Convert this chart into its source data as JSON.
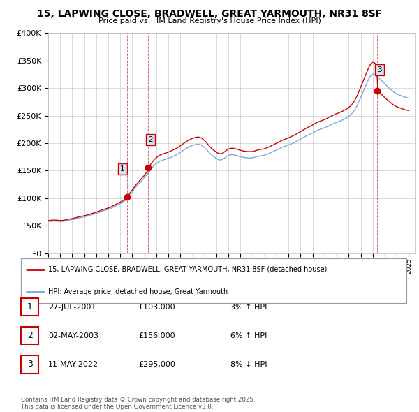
{
  "title": "15, LAPWING CLOSE, BRADWELL, GREAT YARMOUTH, NR31 8SF",
  "subtitle": "Price paid vs. HM Land Registry's House Price Index (HPI)",
  "ylim": [
    0,
    400000
  ],
  "ytick_vals": [
    0,
    50000,
    100000,
    150000,
    200000,
    250000,
    300000,
    350000,
    400000
  ],
  "sale_color": "#cc0000",
  "hpi_color": "#7aaadd",
  "vline_color": "#cc0000",
  "background_color": "#ffffff",
  "grid_color": "#cccccc",
  "sale_dates_year": [
    2001.57,
    2003.33,
    2022.36
  ],
  "sale_prices": [
    103000,
    156000,
    295000
  ],
  "sale_labels": [
    "1",
    "2",
    "3"
  ],
  "legend_label_red": "15, LAPWING CLOSE, BRADWELL, GREAT YARMOUTH, NR31 8SF (detached house)",
  "legend_label_blue": "HPI: Average price, detached house, Great Yarmouth",
  "table_rows": [
    {
      "num": "1",
      "date": "27-JUL-2001",
      "price": "£103,000",
      "hpi": "3% ↑ HPI"
    },
    {
      "num": "2",
      "date": "02-MAY-2003",
      "price": "£156,000",
      "hpi": "6% ↑ HPI"
    },
    {
      "num": "3",
      "date": "11-MAY-2022",
      "price": "£295,000",
      "hpi": "8% ↓ HPI"
    }
  ],
  "footer": "Contains HM Land Registry data © Crown copyright and database right 2025.\nThis data is licensed under the Open Government Licence v3.0."
}
